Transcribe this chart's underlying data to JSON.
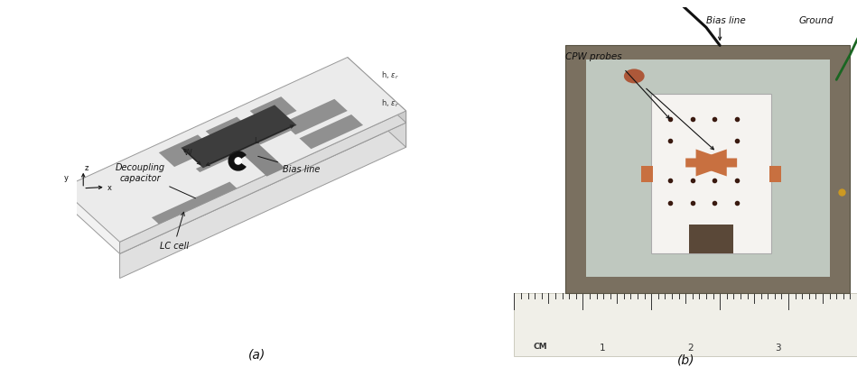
{
  "figure_width": 9.49,
  "figure_height": 4.17,
  "dpi": 100,
  "bg_color": "#ffffff",
  "caption_a": "(a)",
  "caption_b": "(b)",
  "caption_fontsize": 10,
  "schematic": {
    "box_face_top": "#f2f2f2",
    "box_face_front": "#e0e0e0",
    "box_face_right": "#d8d8d8",
    "box_edge": "#999999",
    "layer2_top": "#ebebeb",
    "layer2_front": "#dcdcdc",
    "layer2_right": "#cccccc",
    "strip_color": "#909090",
    "dark_rect": "#3d3d3d",
    "bias_strip": "#888888",
    "cap_color": "#111111",
    "arrow_color": "#222222",
    "label_color": "#111111",
    "axis_color": "#111111"
  },
  "photo": {
    "outer_fill": "#7a7060",
    "outer_edge": "#555040",
    "inner_fill": "#bfc8bf",
    "device_fill": "#f5f3f0",
    "device_edge": "#aaaaaa",
    "conn_color": "#c87040",
    "dot_color": "#3a1a10",
    "wire_black": "#111111",
    "wire_green": "#1a6622",
    "ruler_fill": "#f0efe8",
    "ruler_text": "#333333",
    "annot_color": "#111111",
    "top_bg": "#f8f8f8",
    "label_bias": "Bias line",
    "label_ground": "Ground",
    "label_cpw": "CPW probes"
  }
}
